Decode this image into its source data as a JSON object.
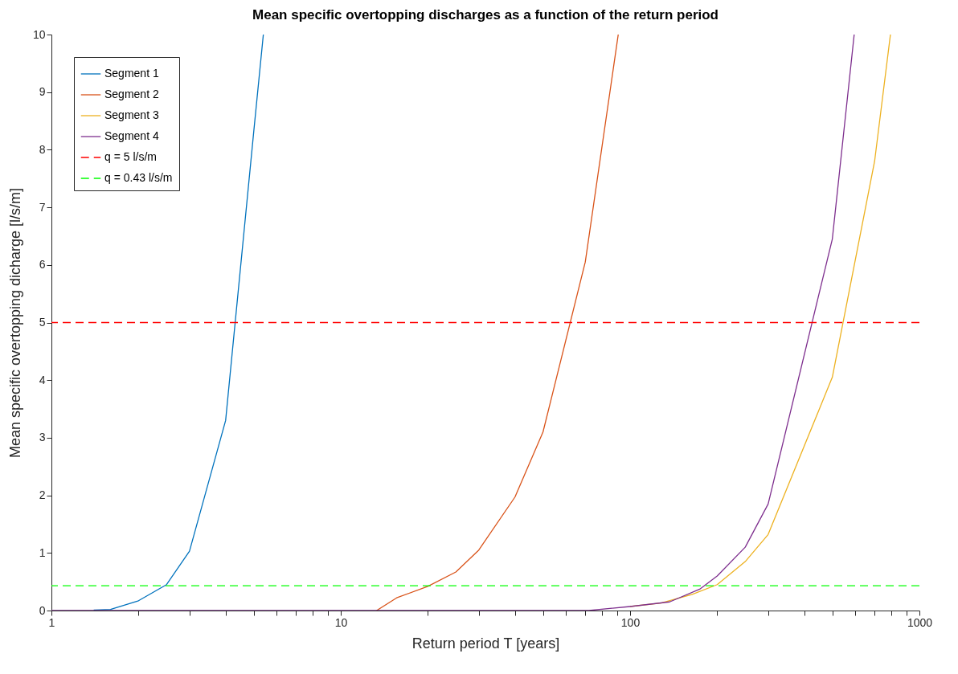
{
  "chart_data": {
    "type": "line",
    "title": "Mean specific overtopping discharges as a function of the return period",
    "xlabel": "Return period T [years]",
    "ylabel": "Mean specific overtopping dicharge [l/s/m]",
    "log": "x",
    "xlim": [
      1,
      1000
    ],
    "ylim": [
      0,
      10
    ],
    "xticks": [
      1,
      {
        "value": 2,
        "label": null
      },
      {
        "value": 3,
        "label": null
      },
      {
        "value": 4,
        "label": null
      },
      {
        "value": 5,
        "label": null
      },
      {
        "value": 6,
        "label": null
      },
      {
        "value": 7,
        "label": null
      },
      {
        "value": 8,
        "label": null
      },
      {
        "value": 9,
        "label": null
      },
      10,
      {
        "value": 20,
        "label": null
      },
      {
        "value": 30,
        "label": null
      },
      {
        "value": 40,
        "label": null
      },
      {
        "value": 50,
        "label": null
      },
      {
        "value": 60,
        "label": null
      },
      {
        "value": 70,
        "label": null
      },
      {
        "value": 80,
        "label": null
      },
      {
        "value": 90,
        "label": null
      },
      100,
      {
        "value": 200,
        "label": null
      },
      {
        "value": 300,
        "label": null
      },
      {
        "value": 400,
        "label": null
      },
      {
        "value": 500,
        "label": null
      },
      {
        "value": 600,
        "label": null
      },
      {
        "value": 700,
        "label": null
      },
      {
        "value": 800,
        "label": null
      },
      {
        "value": 900,
        "label": null
      },
      1000
    ],
    "yticks": [
      0,
      1,
      2,
      3,
      4,
      5,
      6,
      7,
      8,
      9,
      10
    ],
    "legend": "top left",
    "line_style": "solid",
    "series": [
      {
        "name": "Segment 1",
        "color": "#0072bd",
        "x": [
          1.4,
          1.6,
          2,
          2.5,
          3,
          4,
          5,
          5.4
        ],
        "values": [
          0.01,
          0.02,
          0.17,
          0.45,
          1.03,
          3.3,
          8.3,
          10
        ]
      },
      {
        "name": "Segment 2",
        "color": "#d95319",
        "x": [
          13.3,
          15.6,
          20,
          25,
          30,
          40,
          50,
          70,
          91
        ],
        "values": [
          0,
          0.22,
          0.42,
          0.67,
          1.05,
          1.97,
          3.1,
          6.05,
          10
        ]
      },
      {
        "name": "Segment 3",
        "color": "#edb120",
        "x": [
          100,
          128,
          164,
          200,
          250,
          300,
          500,
          700,
          794
        ],
        "values": [
          0.07,
          0.13,
          0.28,
          0.45,
          0.85,
          1.32,
          4.05,
          7.8,
          10
        ]
      },
      {
        "name": "Segment 4",
        "color": "#7e2f8e",
        "x": [
          1,
          72,
          100,
          137,
          174,
          200,
          250,
          300,
          500,
          595
        ],
        "values": [
          0,
          0,
          0.07,
          0.15,
          0.37,
          0.6,
          1.1,
          1.85,
          6.45,
          10
        ]
      }
    ],
    "ref_lines": [
      {
        "axis": "y",
        "value": 5,
        "label": "q = 5 l/s/m",
        "color": "#ff0000",
        "line_style": "dashed"
      },
      {
        "axis": "y",
        "value": 0.43,
        "label": "q = 0.43 l/s/m",
        "color": "#00ff00",
        "line_style": "dashed"
      }
    ]
  }
}
